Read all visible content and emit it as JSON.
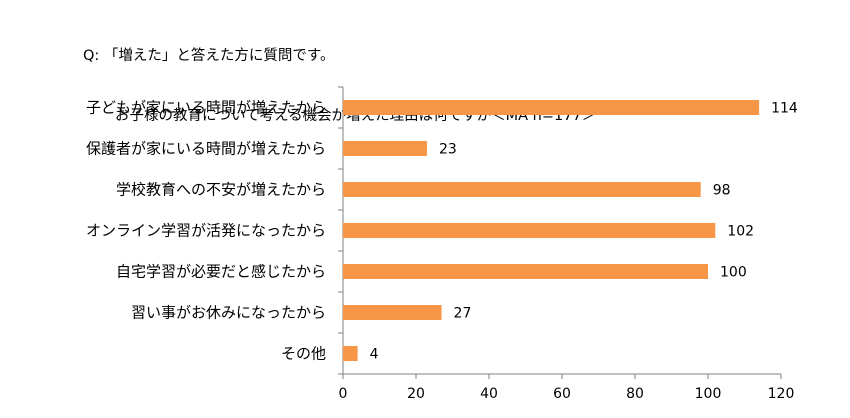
{
  "chart_data": {
    "type": "bar",
    "orientation": "horizontal",
    "title": {
      "line1": "Q: 「増えた」と答えた方に質問です。",
      "line2": "お子様の教育について考える機会が増えた理由は何ですか＜MA n=177＞"
    },
    "categories": [
      "子どもが家にいる時間が増えたから",
      "保護者が家にいる時間が増えたから",
      "学校教育への不安が増えたから",
      "オンライン学習が活発になったから",
      "自宅学習が必要だと感じたから",
      "習い事がお休みになったから",
      "その他"
    ],
    "values": [
      114,
      23,
      98,
      102,
      100,
      27,
      4
    ],
    "xlim": [
      0,
      120
    ],
    "xticks": [
      0,
      20,
      40,
      60,
      80,
      100,
      120
    ],
    "bar_color": "#F79646",
    "grid": false
  }
}
